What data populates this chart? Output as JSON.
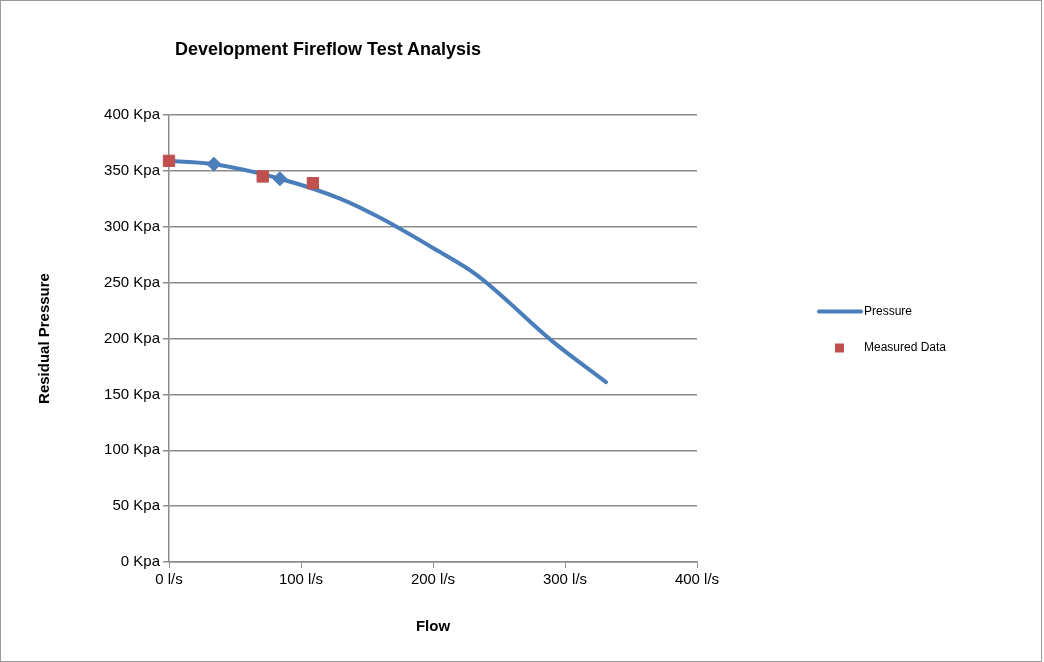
{
  "chart_data": {
    "type": "line",
    "title": "Development Fireflow Test Analysis",
    "xlabel": "Flow",
    "ylabel": "Residual Pressure",
    "xlim": [
      0,
      400
    ],
    "xticks": [
      {
        "value": 0,
        "label": "0 l/s"
      },
      {
        "value": 100,
        "label": "100 l/s"
      },
      {
        "value": 200,
        "label": "200 l/s"
      },
      {
        "value": 300,
        "label": "300 l/s"
      },
      {
        "value": 400,
        "label": "400 l/s"
      }
    ],
    "ylim": [
      0,
      400
    ],
    "yticks": [
      {
        "value": 0,
        "label": "0 Kpa"
      },
      {
        "value": 50,
        "label": "50 Kpa"
      },
      {
        "value": 100,
        "label": "100 Kpa"
      },
      {
        "value": 150,
        "label": "150 Kpa"
      },
      {
        "value": 200,
        "label": "200 Kpa"
      },
      {
        "value": 250,
        "label": "250 Kpa"
      },
      {
        "value": 300,
        "label": "300 Kpa"
      },
      {
        "value": 350,
        "label": "350 Kpa"
      },
      {
        "value": 400,
        "label": "400 Kpa"
      }
    ],
    "grid": "y",
    "legend": "right",
    "series": [
      {
        "name": "Pressure",
        "color": "#4a7ebb",
        "marker": "none",
        "x": [
          0,
          34,
          84,
          130,
          160,
          200,
          233,
          291,
          331
        ],
        "values": [
          359,
          356,
          343,
          325,
          308,
          281,
          257,
          197,
          161
        ]
      },
      {
        "type": "scatter",
        "color": "#4a7ebb",
        "marker": "diamond",
        "x": [
          34,
          84
        ],
        "values": [
          356,
          343
        ]
      },
      {
        "name": "Measured Data",
        "type": "scatter",
        "color": "#c0504d",
        "marker": "square",
        "x": [
          0,
          71,
          109
        ],
        "values": [
          359,
          345,
          339
        ]
      }
    ]
  }
}
